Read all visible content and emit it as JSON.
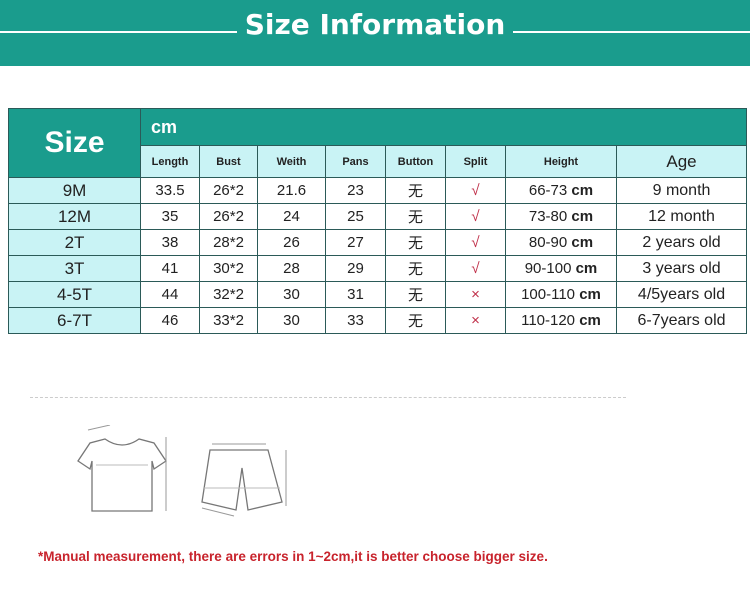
{
  "banner": {
    "title": "Size Information"
  },
  "table": {
    "size_label": "Size",
    "unit_label": "cm",
    "headers": [
      "Length",
      "Bust",
      "Weith",
      "Pans",
      "Button",
      "Split",
      "Height",
      "Age"
    ],
    "rows": [
      {
        "size": "9M",
        "length": "33.5",
        "bust": "26*2",
        "weith": "21.6",
        "pans": "23",
        "button": "无",
        "split": "√",
        "height": "66-73",
        "height_unit": "cm",
        "age": "9 month"
      },
      {
        "size": "12M",
        "length": "35",
        "bust": "26*2",
        "weith": "24",
        "pans": "25",
        "button": "无",
        "split": "√",
        "height": "73-80",
        "height_unit": "cm",
        "age": "12 month"
      },
      {
        "size": "2T",
        "length": "38",
        "bust": "28*2",
        "weith": "26",
        "pans": "27",
        "button": "无",
        "split": "√",
        "height": "80-90",
        "height_unit": "cm",
        "age": "2 years old"
      },
      {
        "size": "3T",
        "length": "41",
        "bust": "30*2",
        "weith": "28",
        "pans": "29",
        "button": "无",
        "split": "√",
        "height": "90-100",
        "height_unit": "cm",
        "age": "3 years old"
      },
      {
        "size": "4-5T",
        "length": "44",
        "bust": "32*2",
        "weith": "30",
        "pans": "31",
        "button": "无",
        "split": "×",
        "height": "100-110",
        "height_unit": "cm",
        "age": "4/5years old"
      },
      {
        "size": "6-7T",
        "length": "46",
        "bust": "33*2",
        "weith": "30",
        "pans": "33",
        "button": "无",
        "split": "×",
        "height": "110-120",
        "height_unit": "cm",
        "age": "6-7years old"
      }
    ]
  },
  "note": "*Manual measurement, there are errors in 1~2cm,it is better choose bigger size.",
  "colors": {
    "teal": "#1a9c8d",
    "light_cyan": "#c9f3f5",
    "note_red": "#c8232c",
    "mark_red": "#c0304a"
  }
}
